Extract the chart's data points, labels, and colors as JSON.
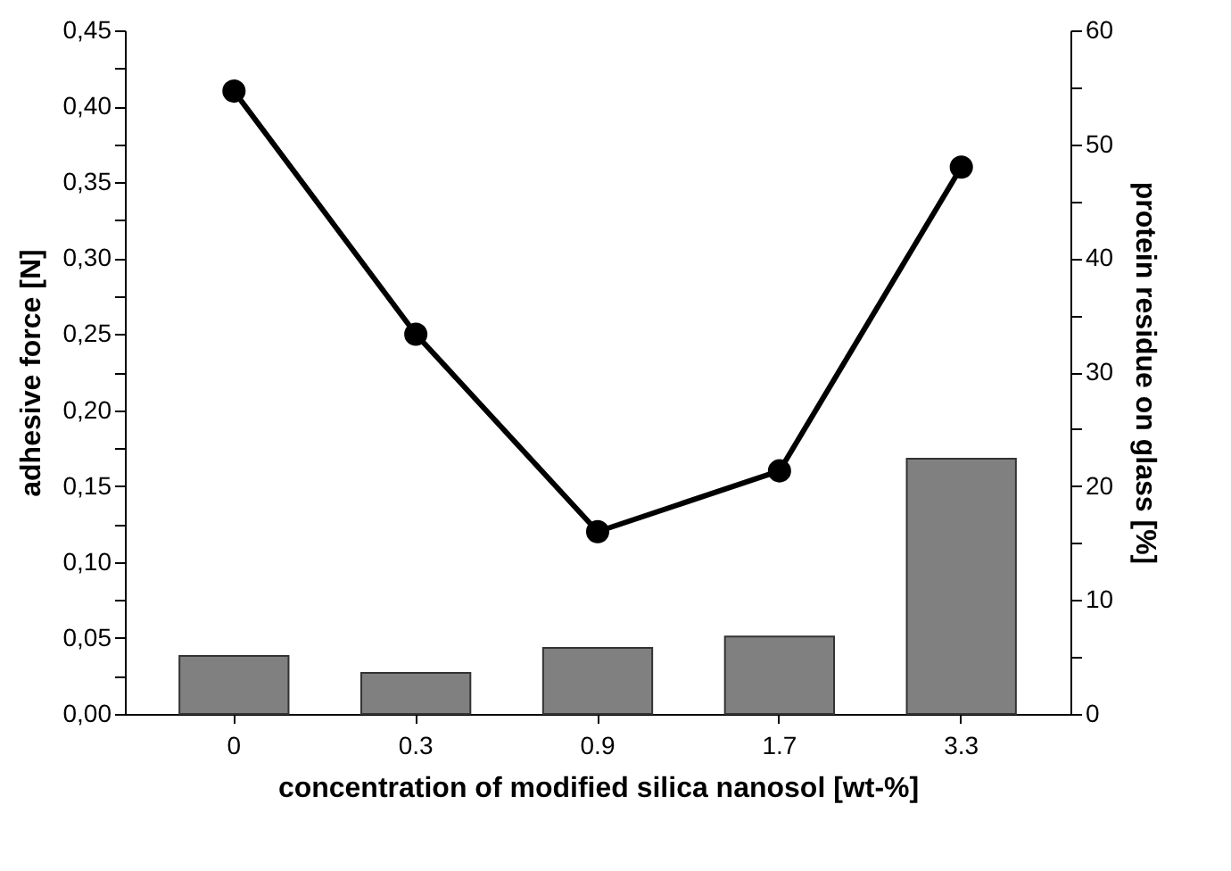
{
  "chart_data": {
    "type": "line",
    "xlabel": "concentration of modified silica nanosol [wt-%]",
    "ylabel": "adhesive force [N]",
    "y2label": "protein residue on glass [%]",
    "categories": [
      "0",
      "0.3",
      "0.9",
      "1.7",
      "3.3"
    ],
    "series": [
      {
        "type": "bar",
        "axis": "y2",
        "color": "#808080",
        "values": [
          5.1,
          3.6,
          5.8,
          6.8,
          22.4
        ]
      },
      {
        "color": "#000000",
        "values": [
          0.41,
          0.25,
          0.12,
          0.16,
          0.36
        ]
      }
    ],
    "marker": "circle",
    "line_style": "solid",
    "ylim": [
      0,
      0.45
    ],
    "yticks": [
      {
        "value": 0,
        "label": "0,00"
      },
      {
        "value": 0.025,
        "label": null
      },
      {
        "value": 0.05,
        "label": "0,05"
      },
      {
        "value": 0.075,
        "label": null
      },
      {
        "value": 0.1,
        "label": "0,10"
      },
      {
        "value": 0.125,
        "label": null
      },
      {
        "value": 0.15,
        "label": "0,15"
      },
      {
        "value": 0.175,
        "label": null
      },
      {
        "value": 0.2,
        "label": "0,20"
      },
      {
        "value": 0.225,
        "label": null
      },
      {
        "value": 0.25,
        "label": "0,25"
      },
      {
        "value": 0.275,
        "label": null
      },
      {
        "value": 0.3,
        "label": "0,30"
      },
      {
        "value": 0.325,
        "label": null
      },
      {
        "value": 0.35,
        "label": "0,35"
      },
      {
        "value": 0.375,
        "label": null
      },
      {
        "value": 0.4,
        "label": "0,40"
      },
      {
        "value": 0.425,
        "label": null
      },
      {
        "value": 0.45,
        "label": "0,45"
      }
    ],
    "y2lim": [
      0,
      60
    ],
    "y2ticks": [
      0,
      {
        "value": 5,
        "label": null
      },
      10,
      {
        "value": 15,
        "label": null
      },
      20,
      {
        "value": 25,
        "label": null
      },
      30,
      {
        "value": 35,
        "label": null
      },
      40,
      {
        "value": 45,
        "label": null
      },
      50,
      {
        "value": 55,
        "label": null
      },
      60
    ]
  }
}
